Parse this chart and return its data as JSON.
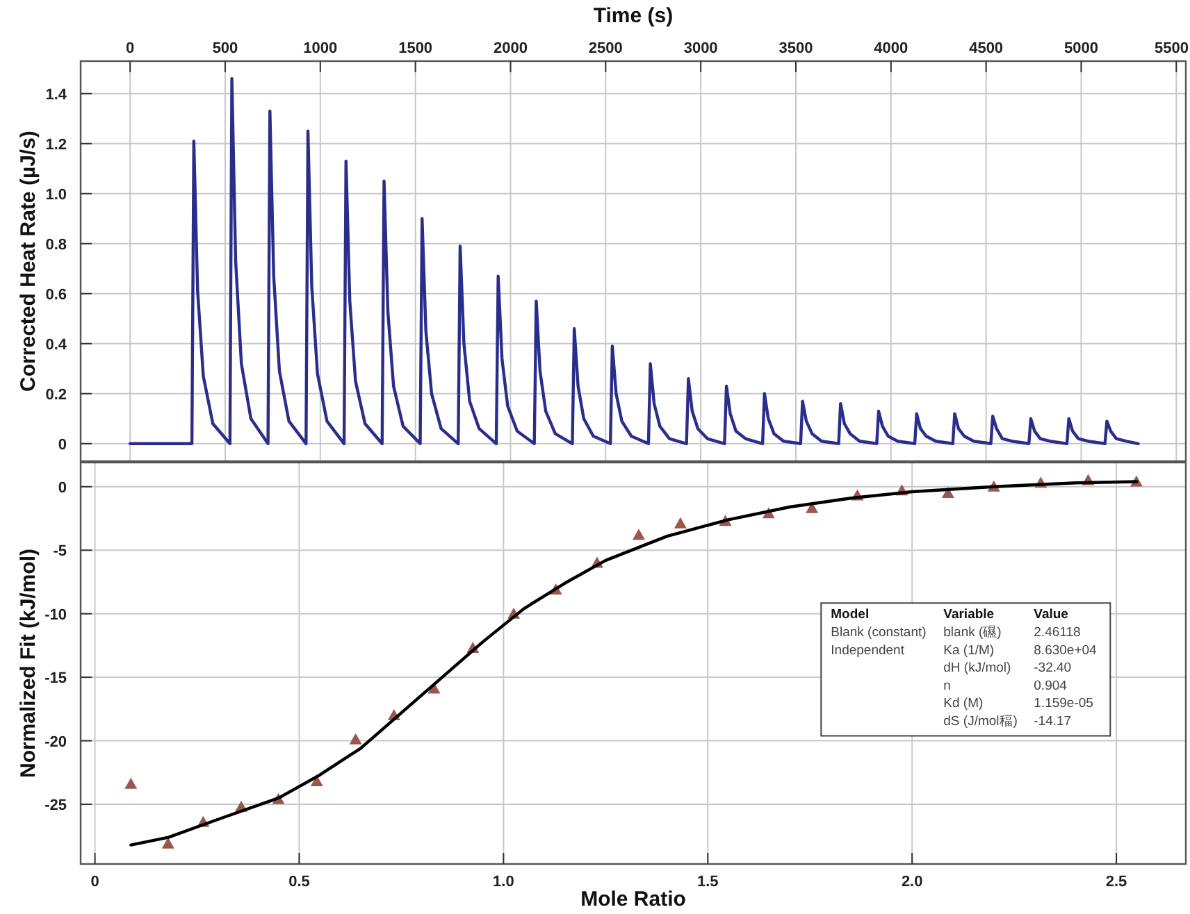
{
  "chart_data": [
    {
      "type": "line",
      "xlabel": "Time (s)",
      "ylabel": "Corrected Heat Rate (µJ/s)",
      "xlim": [
        -260,
        5550
      ],
      "xticks": [
        0,
        500,
        1000,
        1500,
        2000,
        2500,
        3000,
        3500,
        4000,
        4500,
        5000,
        5500
      ],
      "ylim": [
        -0.07,
        1.53
      ],
      "yticks": [
        0,
        0.2,
        0.4,
        0.6,
        0.8,
        {
          "value": 1,
          "label": "1.0"
        },
        1.2,
        1.4
      ],
      "grid": true,
      "series": [
        {
          "color": "#2b2d8a",
          "x": [
            0,
            325,
            335,
            355,
            385,
            435,
            525,
            535,
            555,
            585,
            635,
            725,
            735,
            755,
            785,
            835,
            925,
            935,
            955,
            985,
            1035,
            1125,
            1135,
            1155,
            1185,
            1235,
            1325,
            1335,
            1355,
            1385,
            1435,
            1525,
            1535,
            1555,
            1585,
            1635,
            1725,
            1735,
            1755,
            1785,
            1835,
            1925,
            1935,
            1955,
            1985,
            2035,
            2125,
            2135,
            2155,
            2185,
            2235,
            2325,
            2335,
            2355,
            2385,
            2435,
            2525,
            2535,
            2555,
            2585,
            2635,
            2725,
            2735,
            2755,
            2785,
            2835,
            2925,
            2935,
            2955,
            2985,
            3035,
            3125,
            3135,
            3155,
            3185,
            3235,
            3325,
            3335,
            3355,
            3385,
            3435,
            3525,
            3535,
            3555,
            3585,
            3635,
            3725,
            3735,
            3755,
            3785,
            3835,
            3925,
            3935,
            3955,
            3985,
            4035,
            4125,
            4135,
            4155,
            4185,
            4235,
            4325,
            4335,
            4355,
            4385,
            4435,
            4525,
            4535,
            4555,
            4585,
            4635,
            4725,
            4735,
            4755,
            4785,
            4835,
            4925,
            4935,
            4955,
            4985,
            5035,
            5125,
            5135,
            5155,
            5185,
            5235,
            5300
          ],
          "values": [
            0,
            0,
            1.21,
            0.61,
            0.27,
            0.08,
            0,
            1.46,
            0.73,
            0.32,
            0.1,
            0,
            1.33,
            0.67,
            0.29,
            0.09,
            0,
            1.25,
            0.63,
            0.28,
            0.09,
            0,
            1.13,
            0.57,
            0.25,
            0.08,
            0,
            1.05,
            0.53,
            0.23,
            0.07,
            0,
            0.9,
            0.45,
            0.2,
            0.06,
            0,
            0.79,
            0.4,
            0.17,
            0.06,
            0,
            0.67,
            0.34,
            0.15,
            0.05,
            0,
            0.57,
            0.29,
            0.13,
            0.04,
            0,
            0.46,
            0.23,
            0.1,
            0.03,
            0,
            0.39,
            0.2,
            0.09,
            0.03,
            0,
            0.32,
            0.16,
            0.07,
            0.02,
            0,
            0.26,
            0.13,
            0.06,
            0.02,
            0,
            0.23,
            0.12,
            0.05,
            0.02,
            0,
            0.2,
            0.1,
            0.04,
            0.01,
            0,
            0.17,
            0.09,
            0.04,
            0.01,
            0,
            0.16,
            0.08,
            0.04,
            0.01,
            0,
            0.13,
            0.07,
            0.03,
            0.01,
            0,
            0.12,
            0.06,
            0.03,
            0.01,
            0,
            0.12,
            0.06,
            0.03,
            0.01,
            0,
            0.11,
            0.06,
            0.02,
            0.01,
            0,
            0.1,
            0.05,
            0.02,
            0.01,
            0,
            0.1,
            0.05,
            0.02,
            0.01,
            0,
            0.09,
            0.05,
            0.02,
            0.01,
            0
          ]
        }
      ]
    },
    {
      "type": "scatter",
      "xlabel": "Mole Ratio",
      "ylabel": "Normalized Fit (kJ/mol)",
      "xlim": [
        -0.035,
        2.67
      ],
      "xticks": [
        0,
        0.5,
        {
          "value": 1,
          "label": "1.0"
        },
        1.5,
        {
          "value": 2,
          "label": "2.0"
        },
        2.5
      ],
      "ylim": [
        -29.7,
        1.9
      ],
      "yticks": [
        -25,
        -20,
        -15,
        -10,
        -5,
        0
      ],
      "grid": true,
      "annotations": [
        "Model\tVariable\tValue",
        "Blank (constant)\tblank (礘)\t2.46118",
        "Independent\tKa (1/M)\t8.630e+04",
        "\tdH (kJ/mol)\t-32.40",
        "\tn\t0.904",
        "\tKd (M)\t1.159e-05",
        "\tdS (J/mol稫)\t-14.17"
      ],
      "series": [
        {
          "type": "scatter",
          "marker": "triangle",
          "color": "#9c5650",
          "x": [
            0.088,
            0.179,
            0.265,
            0.358,
            0.449,
            0.543,
            0.638,
            0.732,
            0.83,
            0.925,
            1.025,
            1.128,
            1.229,
            1.331,
            1.433,
            1.543,
            1.649,
            1.755,
            1.866,
            1.975,
            2.088,
            2.2,
            2.315,
            2.431,
            2.549
          ],
          "values": [
            -23.4,
            -28.1,
            -26.4,
            -25.2,
            -24.6,
            -23.2,
            -19.9,
            -18.0,
            -15.9,
            -12.7,
            -10.0,
            -8.1,
            -6.0,
            -3.8,
            -2.9,
            -2.7,
            -2.1,
            -1.7,
            -0.7,
            -0.3,
            -0.5,
            0.0,
            0.3,
            0.5,
            0.4
          ]
        },
        {
          "type": "line",
          "color": "#000000",
          "x": [
            0.088,
            0.18,
            0.3,
            0.45,
            0.55,
            0.65,
            0.75,
            0.85,
            0.95,
            1.05,
            1.15,
            1.25,
            1.4,
            1.55,
            1.7,
            1.85,
            2.0,
            2.2,
            2.4,
            2.55
          ],
          "values": [
            -28.2,
            -27.6,
            -26.2,
            -24.5,
            -22.7,
            -20.6,
            -17.8,
            -15.0,
            -12.2,
            -9.6,
            -7.6,
            -5.8,
            -3.9,
            -2.6,
            -1.6,
            -0.9,
            -0.4,
            0.0,
            0.3,
            0.4
          ]
        }
      ]
    }
  ]
}
